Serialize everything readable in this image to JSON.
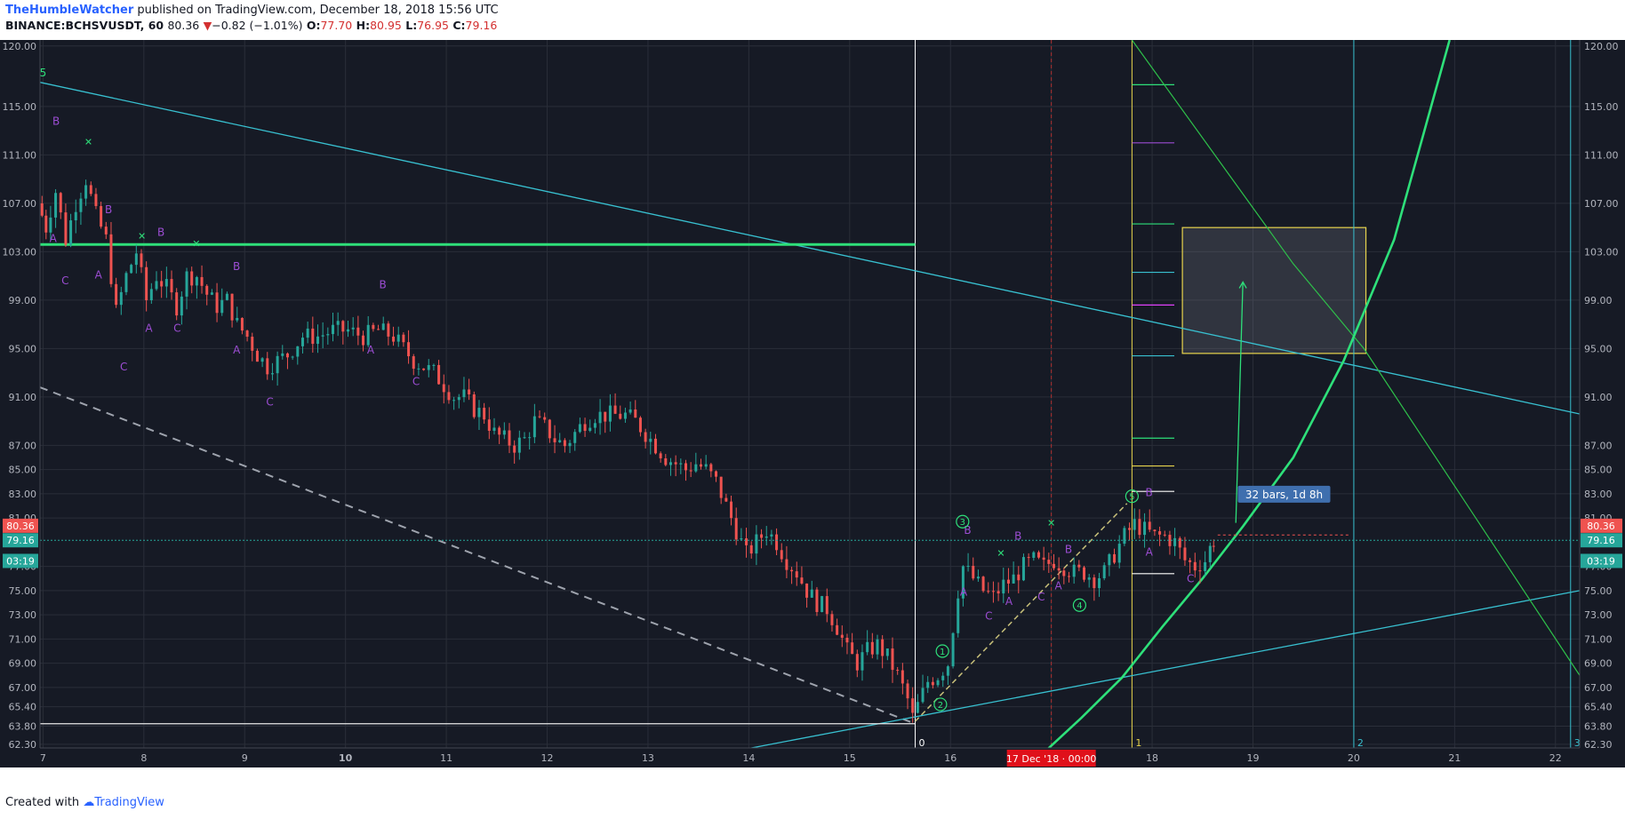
{
  "header": {
    "author": "TheHumbleWatcher",
    "published": "published on TradingView.com, December 18, 2018 15:56 UTC",
    "symbol": "BINANCE:BCHSVUSDT, 60",
    "last": "80.36",
    "change_arrow": "▼",
    "change": "−0.82 (−1.01%)",
    "o_label": "O:",
    "o": "77.70",
    "h_label": "H:",
    "h": "80.95",
    "l_label": "L:",
    "l": "76.95",
    "c_label": "C:",
    "c": "79.16"
  },
  "footer": {
    "created": "Created with",
    "brand": "TradingView"
  },
  "colors": {
    "background": "#161a25",
    "grid": "#2a2e39",
    "up": "#26a69a",
    "down": "#ef5350",
    "cyan": "#38c0d0",
    "green": "#2ee07a",
    "purple": "#9c4dd3",
    "yellow": "#e8d44d"
  },
  "chart_data": {
    "type": "candlestick",
    "symbol": "BINANCE:BCHSVUSDT",
    "interval": "60",
    "y_axis": {
      "ticks": [
        "120.00",
        "115.00",
        "111.00",
        "107.00",
        "103.00",
        "99.00",
        "95.00",
        "91.00",
        "87.00",
        "85.00",
        "83.00",
        "81.00",
        "77.00",
        "75.00",
        "73.00",
        "71.00",
        "69.00",
        "67.00",
        "65.40",
        "63.80",
        "62.30"
      ],
      "ylim": [
        62,
        120.5
      ]
    },
    "x_axis": {
      "ticks": [
        {
          "label": "7",
          "d": 7
        },
        {
          "label": "8",
          "d": 8
        },
        {
          "label": "9",
          "d": 9
        },
        {
          "label": "10",
          "d": 10
        },
        {
          "label": "11",
          "d": 11
        },
        {
          "label": "12",
          "d": 12
        },
        {
          "label": "13",
          "d": 13
        },
        {
          "label": "14",
          "d": 14
        },
        {
          "label": "15",
          "d": 15
        },
        {
          "label": "16",
          "d": 16
        },
        {
          "label": "17",
          "d": 17
        },
        {
          "label": "18",
          "d": 18
        },
        {
          "label": "19",
          "d": 19
        },
        {
          "label": "20",
          "d": 20
        },
        {
          "label": "21",
          "d": 21
        },
        {
          "label": "22",
          "d": 22
        }
      ],
      "xlim": [
        6.97,
        22.24
      ],
      "highlight_label": "17 Dec '18 · 00:00",
      "highlight_d": 17.0
    },
    "price_labels": [
      {
        "text": "80.36",
        "value": 80.36,
        "color": "#ef5350"
      },
      {
        "text": "79.16",
        "value": 79.16,
        "color": "#26a69a"
      },
      {
        "text": "03:19",
        "value": 77.6,
        "color": "#26a69a"
      }
    ],
    "last_price": 79.16,
    "price_path": [
      [
        6.97,
        107
      ],
      [
        7.05,
        105
      ],
      [
        7.15,
        108
      ],
      [
        7.25,
        104
      ],
      [
        7.35,
        107
      ],
      [
        7.45,
        109
      ],
      [
        7.55,
        106
      ],
      [
        7.65,
        104
      ],
      [
        7.75,
        98
      ],
      [
        7.85,
        101
      ],
      [
        7.95,
        103
      ],
      [
        8.05,
        99
      ],
      [
        8.15,
        101
      ],
      [
        8.25,
        100
      ],
      [
        8.35,
        98.5
      ],
      [
        8.45,
        101
      ],
      [
        8.55,
        101
      ],
      [
        8.65,
        99.5
      ],
      [
        8.75,
        98.5
      ],
      [
        8.85,
        99
      ],
      [
        8.95,
        97
      ],
      [
        9.05,
        96
      ],
      [
        9.15,
        94.5
      ],
      [
        9.25,
        93.5
      ],
      [
        9.35,
        94
      ],
      [
        9.45,
        94.5
      ],
      [
        9.6,
        96
      ],
      [
        9.75,
        96
      ],
      [
        9.9,
        96.5
      ],
      [
        10.05,
        96.5
      ],
      [
        10.2,
        96
      ],
      [
        10.35,
        96.5
      ],
      [
        10.5,
        96
      ],
      [
        10.6,
        95
      ],
      [
        10.7,
        94
      ],
      [
        10.8,
        93.5
      ],
      [
        10.9,
        93
      ],
      [
        11.0,
        92
      ],
      [
        11.1,
        91
      ],
      [
        11.2,
        91
      ],
      [
        11.3,
        90
      ],
      [
        11.4,
        89.5
      ],
      [
        11.5,
        88
      ],
      [
        11.6,
        87.5
      ],
      [
        11.7,
        87
      ],
      [
        11.8,
        87.5
      ],
      [
        11.9,
        89
      ],
      [
        12.0,
        88.5
      ],
      [
        12.1,
        87.5
      ],
      [
        12.2,
        87
      ],
      [
        12.3,
        88
      ],
      [
        12.4,
        89
      ],
      [
        12.5,
        89.5
      ],
      [
        12.6,
        89.5
      ],
      [
        12.7,
        89.5
      ],
      [
        12.8,
        89.5
      ],
      [
        12.9,
        89
      ],
      [
        13.0,
        88
      ],
      [
        13.1,
        87
      ],
      [
        13.2,
        86
      ],
      [
        13.3,
        85.5
      ],
      [
        13.4,
        85
      ],
      [
        13.5,
        85.5
      ],
      [
        13.6,
        85
      ],
      [
        13.7,
        84
      ],
      [
        13.8,
        82
      ],
      [
        13.9,
        80
      ],
      [
        14.0,
        78
      ],
      [
        14.1,
        79
      ],
      [
        14.2,
        80
      ],
      [
        14.3,
        79
      ],
      [
        14.4,
        77.5
      ],
      [
        14.5,
        76.5
      ],
      [
        14.6,
        75
      ],
      [
        14.7,
        74
      ],
      [
        14.8,
        73.5
      ],
      [
        14.9,
        72
      ],
      [
        15.0,
        70
      ],
      [
        15.1,
        69
      ],
      [
        15.2,
        70
      ],
      [
        15.3,
        70.5
      ],
      [
        15.4,
        69.5
      ],
      [
        15.5,
        68
      ],
      [
        15.6,
        66
      ],
      [
        15.65,
        64.5
      ],
      [
        15.7,
        65.5
      ],
      [
        15.8,
        67.5
      ],
      [
        15.9,
        68
      ],
      [
        16.0,
        69
      ],
      [
        16.05,
        72
      ],
      [
        16.1,
        75
      ],
      [
        16.15,
        77
      ],
      [
        16.25,
        76
      ],
      [
        16.35,
        75
      ],
      [
        16.45,
        74.5
      ],
      [
        16.55,
        75.5
      ],
      [
        16.65,
        76
      ],
      [
        16.75,
        77
      ],
      [
        16.85,
        77.5
      ],
      [
        16.95,
        77
      ],
      [
        17.05,
        77.5
      ],
      [
        17.15,
        77
      ],
      [
        17.25,
        76.5
      ],
      [
        17.35,
        76.5
      ],
      [
        17.45,
        76
      ],
      [
        17.55,
        76.5
      ],
      [
        17.65,
        78
      ],
      [
        17.75,
        79.5
      ],
      [
        17.85,
        80.5
      ],
      [
        17.95,
        80
      ],
      [
        18.05,
        79.5
      ],
      [
        18.15,
        79.5
      ],
      [
        18.25,
        79
      ],
      [
        18.35,
        77.5
      ],
      [
        18.45,
        77
      ],
      [
        18.55,
        77.5
      ],
      [
        18.6,
        78.5
      ],
      [
        18.62,
        79.16
      ]
    ],
    "overlays": {
      "cyan_trendline": [
        [
          6.97,
          117
        ],
        [
          22.24,
          89.6
        ]
      ],
      "cyan_lower_line": [
        [
          13.9,
          61.8
        ],
        [
          22.24,
          75
        ]
      ],
      "grey_dashed_line": [
        [
          6.97,
          91.8
        ],
        [
          15.65,
          64.0
        ]
      ],
      "green_horizontal": [
        [
          6.97,
          103.6
        ],
        [
          15.65,
          103.6
        ]
      ],
      "white_horizontal": [
        [
          6.97,
          64.0
        ],
        [
          15.65,
          64.0
        ]
      ],
      "yellow_dashed_line": [
        [
          15.65,
          64.2
        ],
        [
          17.75,
          82.2
        ]
      ],
      "green_parabola": [
        [
          16.95,
          61.8
        ],
        [
          17.3,
          64.5
        ],
        [
          17.7,
          67.8
        ],
        [
          18.1,
          72
        ],
        [
          18.5,
          76
        ],
        [
          18.9,
          80.3
        ],
        [
          19.4,
          86
        ],
        [
          19.9,
          94
        ],
        [
          20.4,
          104
        ],
        [
          20.95,
          120.5
        ]
      ],
      "green_thin_line": [
        [
          17.8,
          120.5
        ],
        [
          19.4,
          102
        ],
        [
          20.1,
          95
        ],
        [
          22.24,
          68.0
        ]
      ],
      "target_box": {
        "x0": 18.3,
        "x1": 20.12,
        "y0": 94.6,
        "y1": 105.0
      },
      "projection_arrow": [
        [
          18.83,
          80.6
        ],
        [
          18.9,
          100.5
        ]
      ],
      "bars_label": "32 bars, 1d 8h",
      "vertical_markers": [
        {
          "d": 15.65,
          "label": "0",
          "color": "#ffffff"
        },
        {
          "d": 17.0,
          "label": "",
          "color": "#b03030"
        },
        {
          "d": 17.8,
          "label": "1",
          "color": "#e8d44d"
        },
        {
          "d": 20.0,
          "label": "2",
          "color": "#38c0d0"
        },
        {
          "d": 22.15,
          "label": "3",
          "color": "#38c0d0"
        }
      ],
      "fib_levels": [
        {
          "v": 116.8,
          "c": "#2ee07a"
        },
        {
          "v": 112.0,
          "c": "#9c4dd3"
        },
        {
          "v": 105.3,
          "c": "#2ee07a"
        },
        {
          "v": 101.3,
          "c": "#38c0d0"
        },
        {
          "v": 98.6,
          "c": "#e040fb"
        },
        {
          "v": 94.4,
          "c": "#38c0d0"
        },
        {
          "v": 87.6,
          "c": "#2ee07a"
        },
        {
          "v": 85.3,
          "c": "#e8d44d"
        },
        {
          "v": 83.2,
          "c": "#ffffff"
        },
        {
          "v": 76.4,
          "c": "#ffffff"
        }
      ],
      "wave_labels": [
        {
          "t": "5",
          "d": 7.0,
          "v": 117.5,
          "c": "#2ee07a"
        },
        {
          "t": "B",
          "d": 7.13,
          "v": 113.5,
          "c": "#9c4dd3"
        },
        {
          "t": "A",
          "d": 7.1,
          "v": 103.8,
          "c": "#9c4dd3"
        },
        {
          "t": "C",
          "d": 7.22,
          "v": 100.3,
          "c": "#9c4dd3"
        },
        {
          "t": "B",
          "d": 7.65,
          "v": 106.2,
          "c": "#9c4dd3"
        },
        {
          "t": "A",
          "d": 7.55,
          "v": 100.8,
          "c": "#9c4dd3"
        },
        {
          "t": "C",
          "d": 7.8,
          "v": 93.2,
          "c": "#9c4dd3"
        },
        {
          "t": "B",
          "d": 8.17,
          "v": 104.3,
          "c": "#9c4dd3"
        },
        {
          "t": "A",
          "d": 8.05,
          "v": 96.4,
          "c": "#9c4dd3"
        },
        {
          "t": "C",
          "d": 8.33,
          "v": 96.4,
          "c": "#9c4dd3"
        },
        {
          "t": "B",
          "d": 8.92,
          "v": 101.5,
          "c": "#9c4dd3"
        },
        {
          "t": "A",
          "d": 8.92,
          "v": 94.6,
          "c": "#9c4dd3"
        },
        {
          "t": "C",
          "d": 9.25,
          "v": 90.3,
          "c": "#9c4dd3"
        },
        {
          "t": "B",
          "d": 10.37,
          "v": 100.0,
          "c": "#9c4dd3"
        },
        {
          "t": "A",
          "d": 10.25,
          "v": 94.6,
          "c": "#9c4dd3"
        },
        {
          "t": "C",
          "d": 10.7,
          "v": 92.0,
          "c": "#9c4dd3"
        },
        {
          "t": "B",
          "d": 16.17,
          "v": 79.7,
          "c": "#9c4dd3"
        },
        {
          "t": "A",
          "d": 16.13,
          "v": 74.6,
          "c": "#9c4dd3"
        },
        {
          "t": "C",
          "d": 16.38,
          "v": 72.6,
          "c": "#9c4dd3"
        },
        {
          "t": "B",
          "d": 16.67,
          "v": 79.2,
          "c": "#9c4dd3"
        },
        {
          "t": "A",
          "d": 16.58,
          "v": 73.8,
          "c": "#9c4dd3"
        },
        {
          "t": "B",
          "d": 17.17,
          "v": 78.1,
          "c": "#9c4dd3"
        },
        {
          "t": "A",
          "d": 17.07,
          "v": 75.1,
          "c": "#9c4dd3"
        },
        {
          "t": "C",
          "d": 16.9,
          "v": 74.2,
          "c": "#9c4dd3"
        },
        {
          "t": "B",
          "d": 17.97,
          "v": 82.8,
          "c": "#9c4dd3"
        },
        {
          "t": "A",
          "d": 17.97,
          "v": 77.9,
          "c": "#9c4dd3"
        },
        {
          "t": "C",
          "d": 18.38,
          "v": 75.7,
          "c": "#9c4dd3"
        }
      ],
      "circled_labels": [
        {
          "t": "1",
          "d": 15.92,
          "v": 70.0
        },
        {
          "t": "2",
          "d": 15.9,
          "v": 65.6
        },
        {
          "t": "3",
          "d": 16.12,
          "v": 80.7
        },
        {
          "t": "4",
          "d": 17.28,
          "v": 73.8
        },
        {
          "t": "5",
          "d": 17.8,
          "v": 82.8
        }
      ],
      "x_markers": [
        {
          "d": 7.45,
          "v": 112.1
        },
        {
          "d": 7.98,
          "v": 104.3
        },
        {
          "d": 8.52,
          "v": 103.7
        },
        {
          "d": 16.5,
          "v": 78.1
        },
        {
          "d": 17.0,
          "v": 80.6
        }
      ]
    }
  }
}
